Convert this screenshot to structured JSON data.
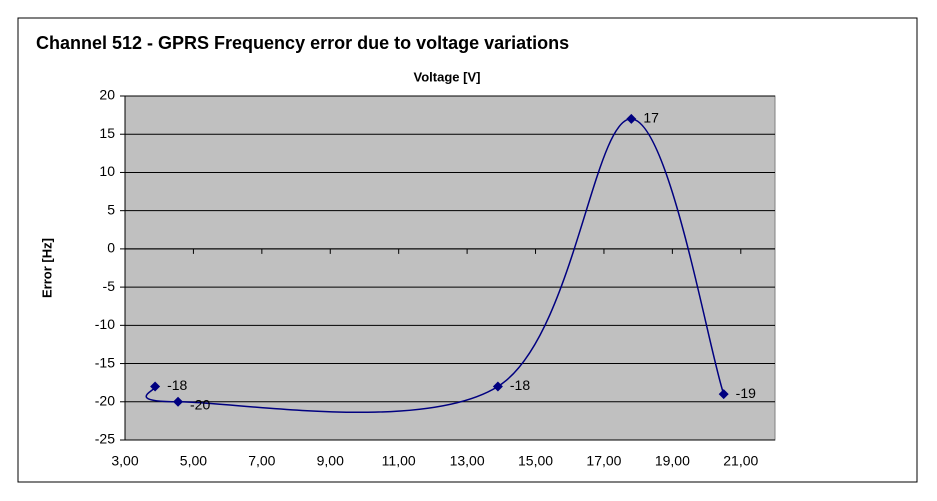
{
  "chart_data": {
    "type": "scatter",
    "title": "Channel 512 - GPRS Frequency error due to voltage variations",
    "x_label": "Voltage [V]",
    "y_label": "Error [Hz]",
    "x": [
      3.88,
      4.55,
      13.9,
      17.8,
      20.5
    ],
    "values": [
      -18,
      -20,
      -18,
      17,
      -19
    ],
    "color": "#000080",
    "smooth": true,
    "grid": true,
    "plot_background": "#c0c0c0",
    "xlim": [
      3,
      22
    ],
    "xticks": [
      {
        "value": 3,
        "label": "3,00"
      },
      {
        "value": 5,
        "label": "5,00"
      },
      {
        "value": 7,
        "label": "7,00"
      },
      {
        "value": 9,
        "label": "9,00"
      },
      {
        "value": 11,
        "label": "11,00"
      },
      {
        "value": 13,
        "label": "13,00"
      },
      {
        "value": 15,
        "label": "15,00"
      },
      {
        "value": 17,
        "label": "17,00"
      },
      {
        "value": 19,
        "label": "19,00"
      },
      {
        "value": 21,
        "label": "21,00"
      }
    ],
    "ylim": [
      -25,
      20
    ],
    "yticks": [
      -25,
      -20,
      -15,
      -10,
      -5,
      0,
      5,
      10,
      15,
      20
    ]
  }
}
